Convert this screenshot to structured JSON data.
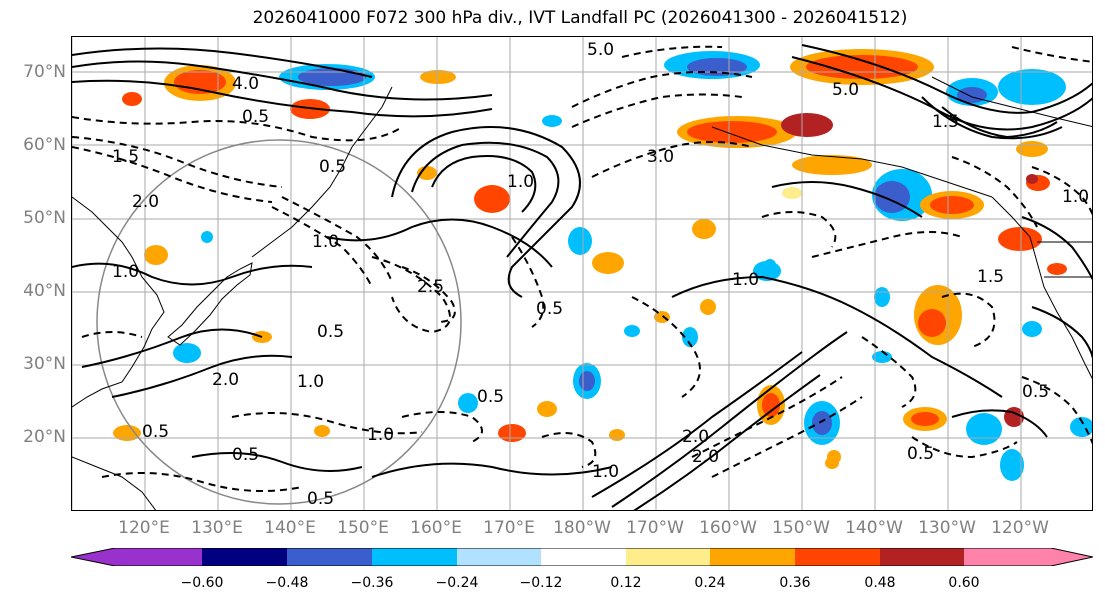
{
  "title": "2026041000 F072 300 hPa div., IVT Landfall PC (2026041300 - 2026041512)",
  "lat_labels": [
    "70°N",
    "60°N",
    "50°N",
    "40°N",
    "30°N",
    "20°N"
  ],
  "lon_labels": [
    "120°E",
    "130°E",
    "140°E",
    "150°E",
    "160°E",
    "170°E",
    "180°W",
    "170°W",
    "160°W",
    "150°W",
    "140°W",
    "130°W",
    "120°W"
  ],
  "colorbar": {
    "ticks": [
      "−0.60",
      "−0.48",
      "−0.36",
      "−0.24",
      "−0.12",
      "0.12",
      "0.24",
      "0.36",
      "0.48",
      "0.60"
    ],
    "colors": [
      "#9932cc",
      "#000080",
      "#3a5fcd",
      "#00bfff",
      "#b0e2ff",
      "#ffffff",
      "#ffec8b",
      "#ffa500",
      "#ff4500",
      "#b22222",
      "#ff82ab"
    ]
  },
  "contour_labels": [
    "5.0",
    "4.0",
    "0.5",
    "1.5",
    "2.0",
    "1.0",
    "0.5",
    "1.0",
    "0.5",
    "1.0",
    "3.0",
    "2.0",
    "1.5",
    "2.5",
    "0.5",
    "1.0",
    "0.5",
    "1.0",
    "0.5",
    "2.0",
    "1.0",
    "0.5",
    "1.5",
    "0.5",
    "1.0",
    "2.0",
    "0.5",
    "1.0",
    "5.0",
    "0.5"
  ]
}
